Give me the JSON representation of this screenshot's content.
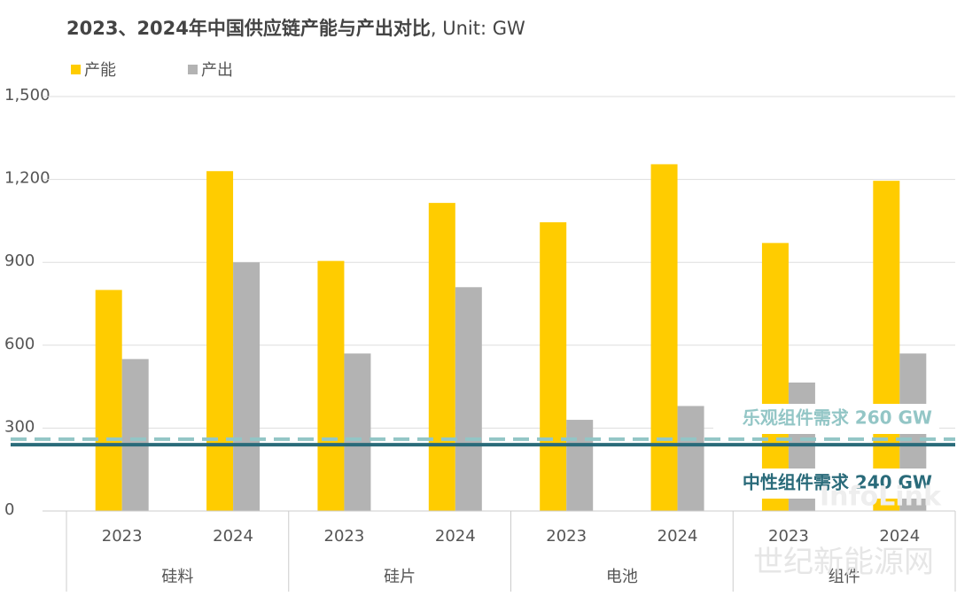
{
  "chart_data": {
    "type": "bar",
    "title": "2023、2024年中国供应链产能与产出对比",
    "subtitle": ", Unit: GW",
    "groups": [
      "硅料",
      "硅片",
      "电池",
      "组件"
    ],
    "categories": [
      "2023",
      "2024",
      "2023",
      "2024",
      "2023",
      "2024",
      "2023",
      "2024"
    ],
    "series": [
      {
        "name": "产能",
        "color": "#ffcc00",
        "values": [
          800,
          1230,
          905,
          1115,
          1045,
          1255,
          970,
          1195
        ]
      },
      {
        "name": "产出",
        "color": "#b3b3b3",
        "values": [
          550,
          900,
          570,
          810,
          330,
          380,
          465,
          570
        ]
      }
    ],
    "ylim": [
      0,
      1500
    ],
    "yticks": [
      0,
      300,
      600,
      900,
      {
        "value": 1200,
        "label": "1,200"
      },
      {
        "value": 1500,
        "label": "1,500"
      }
    ],
    "grid": true,
    "reference_lines": [
      {
        "label": "乐观组件需求 260 GW",
        "value": 260,
        "color": "#93c6c6",
        "style": "dashed"
      },
      {
        "label": "中性组件需求 240 GW",
        "value": 240,
        "color": "#2a6b7a",
        "style": "solid"
      }
    ],
    "watermarks": [
      "InfoLink",
      "世纪新能源网"
    ]
  }
}
